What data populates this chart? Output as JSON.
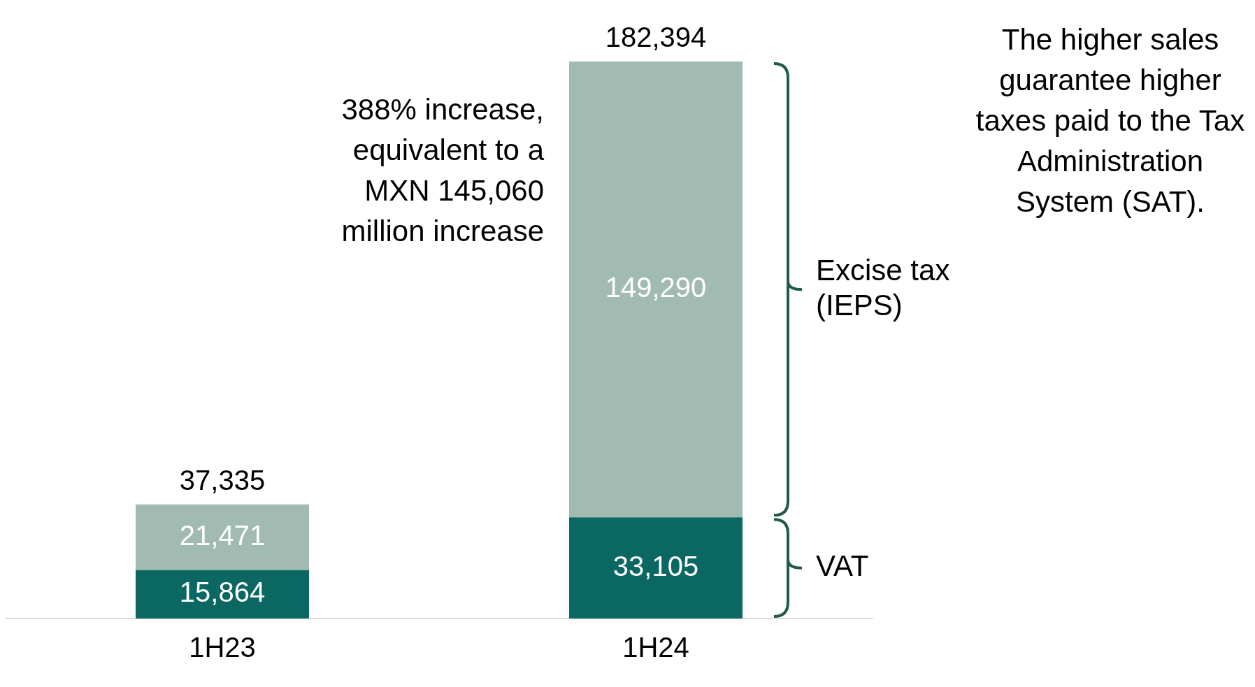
{
  "chart_data": {
    "type": "bar",
    "stacked": true,
    "categories": [
      "1H23",
      "1H24"
    ],
    "series": [
      {
        "name": "VAT",
        "color": "#0b6762",
        "values": [
          15864,
          33105
        ],
        "value_labels": [
          "15,864",
          "33,105"
        ]
      },
      {
        "name": "Excise tax (IEPS)",
        "color": "#a1bbb3",
        "values": [
          21471,
          149290
        ],
        "value_labels": [
          "21,471",
          "149,290"
        ]
      }
    ],
    "totals": [
      "37,335",
      "182,394"
    ],
    "grid": false,
    "legend": false,
    "annotations": [
      "388% increase, equivalent to a MXN 145,060 million increase",
      "The higher sales guarantee higher taxes paid to the Tax Administration System (SAT)."
    ]
  }
}
